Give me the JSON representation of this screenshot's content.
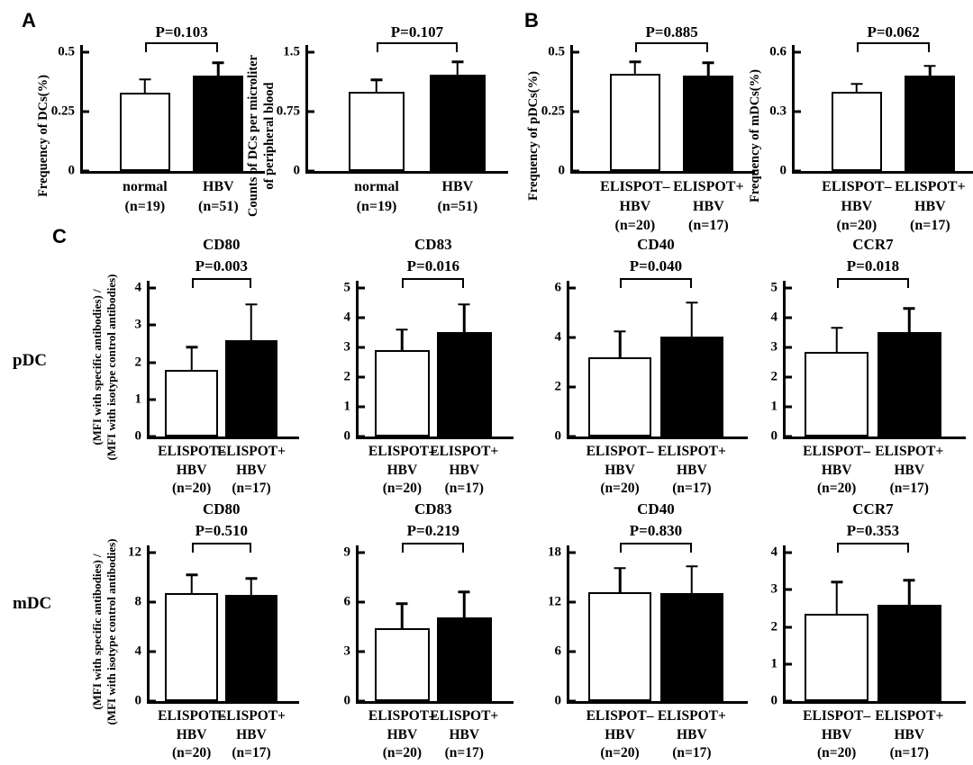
{
  "colors": {
    "open_bar": "#ffffff",
    "filled_bar": "#000000",
    "axis": "#000000",
    "text": "#000000"
  },
  "panel_labels": {
    "a": "A",
    "b": "B",
    "c": "C"
  },
  "row_labels": {
    "pdc": "pDC",
    "mdc": "mDC"
  },
  "chart_data": [
    {
      "panel": "A",
      "row": "",
      "type": "bar",
      "title": "",
      "p_label": "P=0.103",
      "ylabel_lines": [
        "Frequency of DCs(%)"
      ],
      "categories": [
        [
          "normal",
          "(n=19)"
        ],
        [
          "HBV",
          "(n=51)"
        ]
      ],
      "values": [
        0.33,
        0.4
      ],
      "errors_sd": [
        0.055,
        0.055
      ],
      "ylim": [
        0,
        0.5
      ],
      "yticks": [
        0,
        0.25,
        0.5
      ],
      "ytick_labels": [
        "0",
        "0.25",
        "0.5"
      ]
    },
    {
      "panel": "A",
      "row": "",
      "type": "bar",
      "title": "",
      "p_label": "P=0.107",
      "ylabel_lines": [
        "Counts of DCs per microliter",
        "of peripheral blood"
      ],
      "categories": [
        [
          "normal",
          "(n=19)"
        ],
        [
          "HBV",
          "(n=51)"
        ]
      ],
      "values": [
        1.0,
        1.22
      ],
      "errors_sd": [
        0.15,
        0.16
      ],
      "ylim": [
        0,
        1.5
      ],
      "yticks": [
        0,
        0.75,
        1.5
      ],
      "ytick_labels": [
        "0",
        "0.75",
        "1.5"
      ]
    },
    {
      "panel": "B",
      "row": "",
      "type": "bar",
      "title": "",
      "p_label": "P=0.885",
      "ylabel_lines": [
        "Frequency of pDCs(%)"
      ],
      "categories": [
        [
          "ELISPOT–",
          "HBV",
          "(n=20)"
        ],
        [
          "ELISPOT+",
          "HBV",
          "(n=17)"
        ]
      ],
      "values": [
        0.41,
        0.4
      ],
      "errors_sd": [
        0.05,
        0.055
      ],
      "ylim": [
        0,
        0.5
      ],
      "yticks": [
        0,
        0.25,
        0.5
      ],
      "ytick_labels": [
        "0",
        "0.25",
        "0.5"
      ]
    },
    {
      "panel": "B",
      "row": "",
      "type": "bar",
      "title": "",
      "p_label": "P=0.062",
      "ylabel_lines": [
        "Frequency of mDCs(%)"
      ],
      "categories": [
        [
          "ELISPOT–",
          "HBV",
          "(n=20)"
        ],
        [
          "ELISPOT+",
          "HBV",
          "(n=17)"
        ]
      ],
      "values": [
        0.4,
        0.48
      ],
      "errors_sd": [
        0.04,
        0.05
      ],
      "ylim": [
        0,
        0.6
      ],
      "yticks": [
        0,
        0.3,
        0.6
      ],
      "ytick_labels": [
        "0",
        "0.3",
        "0.6"
      ]
    },
    {
      "panel": "C",
      "row": "pDC",
      "type": "bar",
      "title": "CD80",
      "p_label": "P=0.003",
      "ylabel_lines": [
        "(MFI with specific antibodies)  /",
        "(MFI with isotype control antibodies)"
      ],
      "categories": [
        [
          "ELISPOT–",
          "HBV",
          "(n=20)"
        ],
        [
          "ELISPOT+",
          "HBV",
          "(n=17)"
        ]
      ],
      "values": [
        1.8,
        2.6
      ],
      "errors_sd": [
        0.6,
        0.95
      ],
      "ylim": [
        0,
        4
      ],
      "yticks": [
        0,
        1,
        2,
        3,
        4
      ],
      "ytick_labels": [
        "0",
        "1",
        "2",
        "3",
        "4"
      ]
    },
    {
      "panel": "C",
      "row": "pDC",
      "type": "bar",
      "title": "CD83",
      "p_label": "P=0.016",
      "ylabel_lines": [],
      "categories": [
        [
          "ELISPOT–",
          "HBV",
          "(n=20)"
        ],
        [
          "ELISPOT+",
          "HBV",
          "(n=17)"
        ]
      ],
      "values": [
        2.9,
        3.5
      ],
      "errors_sd": [
        0.7,
        0.95
      ],
      "ylim": [
        0,
        5
      ],
      "yticks": [
        0,
        1,
        2,
        3,
        4,
        5
      ],
      "ytick_labels": [
        "0",
        "1",
        "2",
        "3",
        "4",
        "5"
      ]
    },
    {
      "panel": "C",
      "row": "pDC",
      "type": "bar",
      "title": "CD40",
      "p_label": "P=0.040",
      "ylabel_lines": [],
      "categories": [
        [
          "ELISPOT–",
          "HBV",
          "(n=20)"
        ],
        [
          "ELISPOT+",
          "HBV",
          "(n=17)"
        ]
      ],
      "values": [
        3.2,
        4.05
      ],
      "errors_sd": [
        1.05,
        1.35
      ],
      "ylim": [
        0,
        6
      ],
      "yticks": [
        0,
        2,
        4,
        6
      ],
      "ytick_labels": [
        "0",
        "2",
        "4",
        "6"
      ]
    },
    {
      "panel": "C",
      "row": "pDC",
      "type": "bar",
      "title": "CCR7",
      "p_label": "P=0.018",
      "ylabel_lines": [],
      "categories": [
        [
          "ELISPOT–",
          "HBV",
          "(n=20)"
        ],
        [
          "ELISPOT+",
          "HBV",
          "(n=17)"
        ]
      ],
      "values": [
        2.85,
        3.5
      ],
      "errors_sd": [
        0.8,
        0.8
      ],
      "ylim": [
        0,
        5
      ],
      "yticks": [
        0,
        1,
        2,
        3,
        4,
        5
      ],
      "ytick_labels": [
        "0",
        "1",
        "2",
        "3",
        "4",
        "5"
      ]
    },
    {
      "panel": "C",
      "row": "mDC",
      "type": "bar",
      "title": "CD80",
      "p_label": "P=0.510",
      "ylabel_lines": [
        "(MFI with specific antibodies)  /",
        "(MFI with isotype control antibodies)"
      ],
      "categories": [
        [
          "ELISPOT–",
          "HBV",
          "(n=20)"
        ],
        [
          "ELISPOT+",
          "HBV",
          "(n=17)"
        ]
      ],
      "values": [
        8.7,
        8.6
      ],
      "errors_sd": [
        1.5,
        1.3
      ],
      "ylim": [
        0,
        12
      ],
      "yticks": [
        0,
        4,
        8,
        12
      ],
      "ytick_labels": [
        "0",
        "4",
        "8",
        "12"
      ]
    },
    {
      "panel": "C",
      "row": "mDC",
      "type": "bar",
      "title": "CD83",
      "p_label": "P=0.219",
      "ylabel_lines": [],
      "categories": [
        [
          "ELISPOT–",
          "HBV",
          "(n=20)"
        ],
        [
          "ELISPOT+",
          "HBV",
          "(n=17)"
        ]
      ],
      "values": [
        4.4,
        5.05
      ],
      "errors_sd": [
        1.5,
        1.55
      ],
      "ylim": [
        0,
        9
      ],
      "yticks": [
        0,
        3,
        6,
        9
      ],
      "ytick_labels": [
        "0",
        "3",
        "6",
        "9"
      ]
    },
    {
      "panel": "C",
      "row": "mDC",
      "type": "bar",
      "title": "CD40",
      "p_label": "P=0.830",
      "ylabel_lines": [],
      "categories": [
        [
          "ELISPOT–",
          "HBV",
          "(n=20)"
        ],
        [
          "ELISPOT+",
          "HBV",
          "(n=17)"
        ]
      ],
      "values": [
        13.2,
        13.1
      ],
      "errors_sd": [
        2.9,
        3.2
      ],
      "ylim": [
        0,
        18
      ],
      "yticks": [
        0,
        6,
        12,
        18
      ],
      "ytick_labels": [
        "0",
        "6",
        "12",
        "18"
      ]
    },
    {
      "panel": "C",
      "row": "mDC",
      "type": "bar",
      "title": "CCR7",
      "p_label": "P=0.353",
      "ylabel_lines": [],
      "categories": [
        [
          "ELISPOT–",
          "HBV",
          "(n=20)"
        ],
        [
          "ELISPOT+",
          "HBV",
          "(n=17)"
        ]
      ],
      "values": [
        2.35,
        2.6
      ],
      "errors_sd": [
        0.85,
        0.65
      ],
      "ylim": [
        0,
        4
      ],
      "yticks": [
        0,
        1,
        2,
        3,
        4
      ],
      "ytick_labels": [
        "0",
        "1",
        "2",
        "3",
        "4"
      ]
    }
  ]
}
